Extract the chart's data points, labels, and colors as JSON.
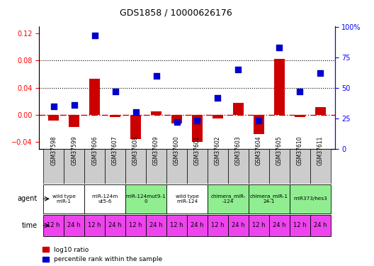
{
  "title": "GDS1858 / 10000626176",
  "samples": [
    "GSM37598",
    "GSM37599",
    "GSM37606",
    "GSM37607",
    "GSM37608",
    "GSM37609",
    "GSM37600",
    "GSM37601",
    "GSM37602",
    "GSM37603",
    "GSM37604",
    "GSM37605",
    "GSM37610",
    "GSM37611"
  ],
  "log10_ratio": [
    -0.008,
    -0.018,
    0.053,
    -0.003,
    -0.035,
    0.005,
    -0.012,
    -0.04,
    -0.005,
    0.018,
    -0.028,
    0.083,
    -0.003,
    0.012
  ],
  "percentile_rank": [
    35,
    36,
    93,
    47,
    30,
    60,
    22,
    23,
    42,
    65,
    23,
    83,
    47,
    62
  ],
  "agents": [
    {
      "label": "wild type\nmiR-1",
      "cols": [
        0,
        1
      ],
      "color": "#ffffff"
    },
    {
      "label": "miR-124m\nut5-6",
      "cols": [
        2,
        3
      ],
      "color": "#ffffff"
    },
    {
      "label": "miR-124mut9-1\n0",
      "cols": [
        4,
        5
      ],
      "color": "#90ee90"
    },
    {
      "label": "wild type\nmiR-124",
      "cols": [
        6,
        7
      ],
      "color": "#ffffff"
    },
    {
      "label": "chimera_miR-\n-124",
      "cols": [
        8,
        9
      ],
      "color": "#90ee90"
    },
    {
      "label": "chimera_miR-1\n24-1",
      "cols": [
        10,
        11
      ],
      "color": "#90ee90"
    },
    {
      "label": "miR373/hes3",
      "cols": [
        12,
        13
      ],
      "color": "#90ee90"
    }
  ],
  "ylim_left": [
    -0.05,
    0.13
  ],
  "ylim_right": [
    0,
    100
  ],
  "yticks_left": [
    -0.04,
    0.0,
    0.04,
    0.08,
    0.12
  ],
  "yticks_right": [
    0,
    25,
    50,
    75,
    100
  ],
  "ytick_labels_right": [
    "0",
    "25",
    "50",
    "75",
    "100%"
  ],
  "hlines": [
    0.04,
    0.08
  ],
  "bar_color": "#cc0000",
  "dot_color": "#0000cc",
  "dot_size": 28,
  "bar_width": 0.5,
  "zero_line_color": "#cc0000",
  "zero_line_style": "-.",
  "grid_line_color": "#000000",
  "grid_line_style": ":",
  "sample_bg_color": "#cccccc",
  "time_row_color": "#ee44ee",
  "time_values": [
    "12 h",
    "24 h",
    "12 h",
    "24 h",
    "12 h",
    "24 h",
    "12 h",
    "24 h",
    "12 h",
    "24 h",
    "12 h",
    "24 h",
    "12 h",
    "24 h"
  ]
}
